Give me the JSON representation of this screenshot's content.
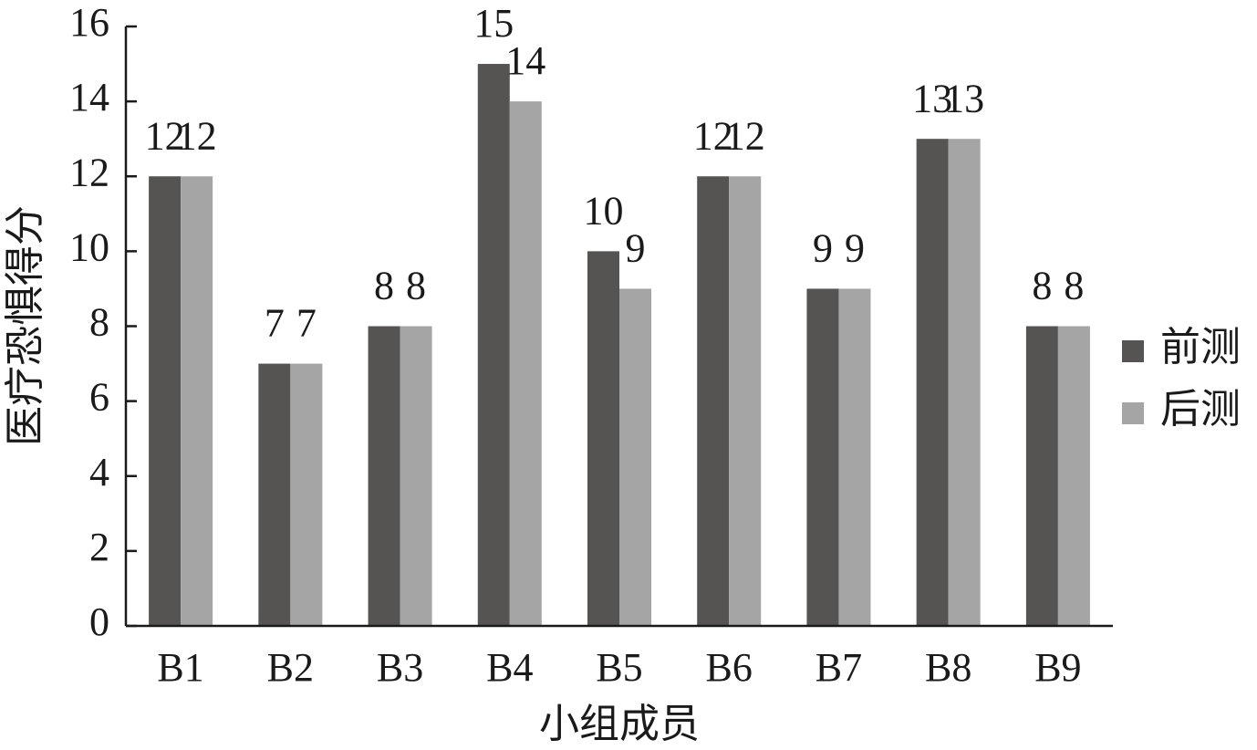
{
  "chart_data": {
    "type": "bar",
    "x_label": "小组成员",
    "y_label": "医疗恐惧得分",
    "categories": [
      "B1",
      "B2",
      "B3",
      "B4",
      "B5",
      "B6",
      "B7",
      "B8",
      "B9"
    ],
    "series": [
      {
        "name": "前测",
        "color": "#555452",
        "values": [
          12,
          7,
          8,
          15,
          10,
          12,
          9,
          13,
          8
        ]
      },
      {
        "name": "后测",
        "color": "#a5a5a5",
        "values": [
          12,
          7,
          8,
          14,
          9,
          12,
          9,
          13,
          8
        ]
      }
    ],
    "ylim": [
      0,
      16
    ],
    "yticks": [
      0,
      2,
      4,
      6,
      8,
      10,
      12,
      14,
      16
    ],
    "grid": false,
    "legend": "right",
    "data_labels": true
  }
}
